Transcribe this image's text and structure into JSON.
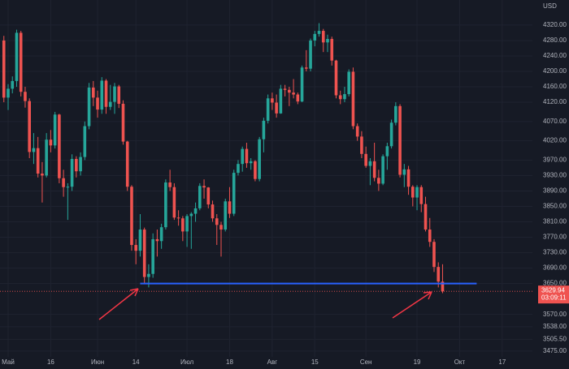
{
  "chart_data": {
    "type": "candlestick",
    "currency": "USD",
    "up_color": "#26a69a",
    "down_color": "#ef5350",
    "categories": [
      null,
      "Май",
      null,
      null,
      null,
      null,
      null,
      null,
      null,
      null,
      null,
      "16",
      null,
      null,
      null,
      null,
      null,
      null,
      null,
      null,
      null,
      null,
      "Июн",
      null,
      null,
      null,
      null,
      null,
      null,
      null,
      null,
      "14",
      null,
      null,
      null,
      null,
      null,
      null,
      null,
      null,
      null,
      null,
      null,
      "Июл",
      null,
      null,
      null,
      null,
      null,
      null,
      null,
      null,
      null,
      "18",
      null,
      null,
      null,
      null,
      null,
      null,
      null,
      null,
      null,
      "Авг",
      null,
      null,
      null,
      null,
      null,
      null,
      null,
      null,
      null,
      "15",
      null,
      null,
      null,
      null,
      null,
      null,
      null,
      null,
      null,
      null,
      null,
      "Сен",
      null,
      null,
      null,
      null,
      null,
      null,
      null,
      null,
      null,
      null,
      null,
      "19",
      null,
      null,
      null,
      null,
      null,
      null,
      null,
      null,
      null,
      "Окт",
      null,
      null,
      null,
      null,
      null,
      null,
      null,
      null,
      null,
      "17"
    ],
    "open": [
      4280,
      4132,
      4155,
      4175,
      4300,
      4147,
      4123,
      3991,
      4001,
      3935,
      3930,
      4023,
      4008,
      4088,
      3923,
      3900,
      3901,
      3973,
      3941,
      3978,
      4058,
      4158,
      4132,
      4101,
      4176,
      4108,
      4121,
      4161,
      4116,
      4018,
      3901,
      3750,
      3735,
      3790,
      3667,
      3675,
      3765,
      3760,
      3796,
      3912,
      3900,
      3821,
      3819,
      3785,
      3825,
      3831,
      3845,
      3903,
      3899,
      3855,
      3819,
      3802,
      3790,
      3863,
      3831,
      3937,
      3960,
      3999,
      3962,
      3967,
      3921,
      4024,
      4072,
      4130,
      4119,
      4091,
      4155,
      4152,
      4145,
      4140,
      4122,
      4210,
      4207,
      4280,
      4297,
      4305,
      4275,
      4284,
      4228,
      4138,
      4128,
      4141,
      4199,
      4058,
      4031,
      3986,
      3955,
      3967,
      3924,
      3909,
      3980,
      4006,
      4067,
      4110,
      3932,
      3946,
      3901,
      3873,
      3900,
      3856,
      3790,
      3758,
      3693,
      3655,
      null,
      null,
      null,
      null,
      null,
      null,
      null,
      null,
      null,
      null,
      null,
      null,
      null,
      null
    ],
    "high": [
      4292,
      4167,
      4187,
      4308,
      4305,
      4160,
      4130,
      4040,
      4030,
      3965,
      4040,
      4048,
      4095,
      4090,
      3945,
      3910,
      3985,
      3980,
      3990,
      4070,
      4170,
      4175,
      4150,
      4185,
      4180,
      4165,
      4170,
      4165,
      4125,
      4020,
      3905,
      3765,
      3830,
      3795,
      3700,
      3780,
      3790,
      3805,
      3920,
      3945,
      3910,
      3840,
      3825,
      3830,
      3835,
      3860,
      3910,
      3920,
      3900,
      3865,
      3830,
      3810,
      3870,
      3900,
      3945,
      3970,
      4005,
      4015,
      3975,
      3970,
      4030,
      4080,
      4140,
      4145,
      4140,
      4165,
      4165,
      4160,
      4180,
      4145,
      4215,
      4255,
      4285,
      4305,
      4325,
      4310,
      4295,
      4290,
      4230,
      4150,
      4160,
      4205,
      4210,
      4065,
      4045,
      4005,
      3975,
      4015,
      3945,
      3985,
      4015,
      4075,
      4120,
      4115,
      3960,
      3955,
      3905,
      3905,
      3905,
      3875,
      3820,
      3765,
      3705,
      3700,
      null,
      null,
      null,
      null,
      null,
      null,
      null,
      null,
      null,
      null,
      null,
      null,
      null,
      null
    ],
    "low": [
      4120,
      4100,
      4143,
      4160,
      4135,
      4106,
      3975,
      3960,
      3925,
      3860,
      3925,
      3990,
      4000,
      3910,
      3875,
      3815,
      3890,
      3925,
      3930,
      3970,
      4050,
      4110,
      4080,
      4090,
      4090,
      4100,
      4090,
      4105,
      4010,
      3890,
      3735,
      3700,
      3720,
      3650,
      3640,
      3665,
      3720,
      3740,
      3790,
      3890,
      3815,
      3800,
      3760,
      3745,
      3740,
      3810,
      3840,
      3870,
      3845,
      3810,
      3750,
      3720,
      3785,
      3820,
      3825,
      3930,
      3940,
      3950,
      3945,
      3915,
      3915,
      3990,
      4065,
      4100,
      4080,
      4090,
      4135,
      4110,
      4130,
      4115,
      4120,
      4200,
      4200,
      4265,
      4290,
      4250,
      4250,
      4215,
      4130,
      4115,
      4120,
      4135,
      4050,
      4020,
      3975,
      3950,
      3905,
      3915,
      3890,
      3905,
      3945,
      4000,
      4060,
      3925,
      3900,
      3880,
      3850,
      3840,
      3835,
      3785,
      3745,
      3680,
      3640,
      3625,
      null,
      null,
      null,
      null,
      null,
      null,
      null,
      null,
      null,
      null,
      null,
      null,
      null,
      null
    ],
    "close": [
      4132,
      4155,
      4175,
      4300,
      4147,
      4123,
      3991,
      4001,
      3935,
      3930,
      4023,
      4008,
      4088,
      3923,
      3900,
      3901,
      3973,
      3941,
      3978,
      4058,
      4158,
      4132,
      4101,
      4176,
      4108,
      4121,
      4161,
      4116,
      4018,
      3901,
      3750,
      3735,
      3790,
      3667,
      3675,
      3765,
      3760,
      3796,
      3912,
      3900,
      3821,
      3819,
      3785,
      3825,
      3831,
      3845,
      3903,
      3899,
      3855,
      3819,
      3802,
      3790,
      3863,
      3831,
      3937,
      3960,
      3999,
      3962,
      3967,
      3921,
      4024,
      4072,
      4130,
      4119,
      4091,
      4155,
      4152,
      4145,
      4140,
      4122,
      4210,
      4207,
      4280,
      4297,
      4305,
      4275,
      4284,
      4228,
      4138,
      4128,
      4141,
      4199,
      4058,
      4031,
      3986,
      3955,
      3967,
      3924,
      3909,
      3980,
      4006,
      4067,
      4110,
      3932,
      3946,
      3901,
      3873,
      3900,
      3856,
      3790,
      3758,
      3693,
      3655,
      3630,
      null,
      null,
      null,
      null,
      null,
      null,
      null,
      null,
      null,
      null,
      null,
      null,
      null,
      null
    ],
    "ylim": [
      3460,
      4385
    ],
    "yticks": [
      {
        "value": 4320,
        "label": "4320.00"
      },
      {
        "value": 4280,
        "label": "4280.00"
      },
      {
        "value": 4240,
        "label": "4240.00"
      },
      {
        "value": 4200,
        "label": "4200.00"
      },
      {
        "value": 4160,
        "label": "4160.00"
      },
      {
        "value": 4120,
        "label": "4120.00"
      },
      {
        "value": 4070,
        "label": "4070.00"
      },
      {
        "value": 4020,
        "label": "4020.00"
      },
      {
        "value": 3970,
        "label": "3970.00"
      },
      {
        "value": 3930,
        "label": "3930.00"
      },
      {
        "value": 3890,
        "label": "3890.00"
      },
      {
        "value": 3850,
        "label": "3850.00"
      },
      {
        "value": 3810,
        "label": "3810.00"
      },
      {
        "value": 3770,
        "label": "3770.00"
      },
      {
        "value": 3730,
        "label": "3730.00"
      },
      {
        "value": 3690,
        "label": "3690.00"
      },
      {
        "value": 3650,
        "label": "3650.00"
      },
      {
        "value": 3570,
        "label": "3570.00"
      },
      {
        "value": 3538,
        "label": "3538.00"
      },
      {
        "value": 3505.5,
        "label": "3505.50"
      },
      {
        "value": 3475,
        "label": "3475.00"
      }
    ],
    "grid": true,
    "level": {
      "value": 3650,
      "color": "#2962ff"
    },
    "last_price": 3629.94,
    "countdown": "03:09:11"
  }
}
